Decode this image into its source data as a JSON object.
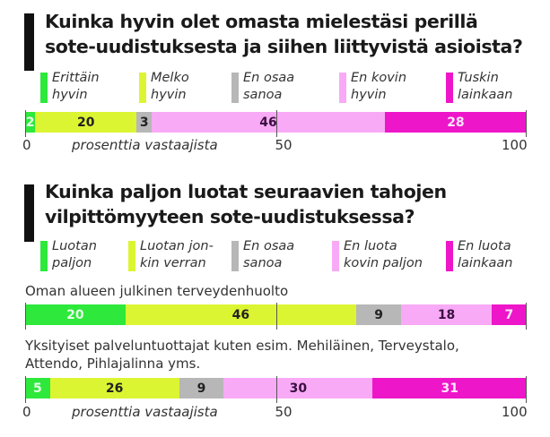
{
  "chart_data": [
    {
      "type": "bar",
      "orientation": "horizontal-stacked",
      "title": "Kuinka hyvin olet omasta mielestäsi perillä sote-uudistuksesta ja siihen liittyvistä asioista?",
      "title_lines": [
        "Kuinka hyvin olet omasta mielestäsi perillä",
        "sote-uudistuksesta ja siihen liittyvistä asioista?"
      ],
      "legend": [
        {
          "label": "Erittäin\nhyvin",
          "color": "#2ee83c"
        },
        {
          "label": "Melko\nhyvin",
          "color": "#dcf532"
        },
        {
          "label": "En osaa\nsanoa",
          "color": "#b7b7b7"
        },
        {
          "label": "En kovin\nhyvin",
          "color": "#f8aaf6"
        },
        {
          "label": "Tuskin\nlainkaan",
          "color": "#ee16c9"
        }
      ],
      "series": [
        {
          "name": "",
          "values": [
            2,
            20,
            3,
            46,
            28
          ]
        }
      ],
      "xlabel": "prosenttia vastaajista",
      "xlim": [
        0,
        100
      ],
      "xticks": [
        "0",
        "50",
        "100"
      ]
    },
    {
      "type": "bar",
      "orientation": "horizontal-stacked",
      "title": "Kuinka paljon luotat seuraavien tahojen vilpittömyyteen sote-uudistuksessa?",
      "title_lines": [
        "Kuinka paljon luotat seuraavien tahojen",
        "vilpittömyyteen sote-uudistuksessa?"
      ],
      "legend": [
        {
          "label": "Luotan\npaljon",
          "color": "#2ee83c"
        },
        {
          "label": "Luotan jon-\nkin verran",
          "color": "#dcf532"
        },
        {
          "label": "En osaa\nsanoa",
          "color": "#b7b7b7"
        },
        {
          "label": "En luota\nkovin paljon",
          "color": "#f8aaf6"
        },
        {
          "label": "En luota\nlainkaan",
          "color": "#ee16c9"
        }
      ],
      "series": [
        {
          "name": "Oman alueen julkinen terveydenhuolto",
          "name_lines": [
            "Oman alueen julkinen terveydenhuolto"
          ],
          "values": [
            20,
            46,
            9,
            18,
            7
          ]
        },
        {
          "name": "Yksityiset palveluntuottajat kuten esim. Mehiläinen, Terveystalo, Attendo, Pihlajalinna yms.",
          "name_lines": [
            "Yksityiset palveluntuottajat kuten esim. Mehiläinen, Terveystalo,",
            "Attendo, Pihlajalinna yms."
          ],
          "values": [
            5,
            26,
            9,
            30,
            31
          ]
        }
      ],
      "xlabel": "prosenttia vastaajista",
      "xlim": [
        0,
        100
      ],
      "xticks": [
        "0",
        "50",
        "100"
      ]
    }
  ],
  "label_colors": [
    "#e8ffe8",
    "#222222",
    "#222222",
    "#3a1040",
    "#ffe8ff"
  ]
}
